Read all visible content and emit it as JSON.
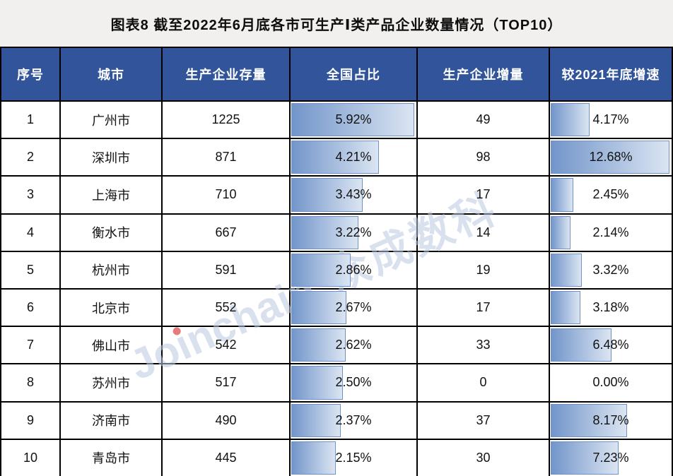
{
  "title": "图表8 截至2022年6月底各市可生产Ⅰ类产品企业数量情况（TOP10）",
  "colors": {
    "header_bg": "#31549A",
    "title_band_bg": "#f1f0ee",
    "cell_border": "#000000",
    "databar_gradient_left": "#7295CA",
    "databar_gradient_right": "#DBE5F2",
    "databar_border": "#6E92C8",
    "header_text": "#ffffff",
    "body_text": "#111111"
  },
  "watermark": {
    "latin_prefix": "Jo",
    "dotless_i": "ı",
    "latin_suffix": "nchain",
    "reg": "®",
    "cjk": "众成数科"
  },
  "table": {
    "columns": [
      "序号",
      "城市",
      "生产企业存量",
      "全国占比",
      "生产企业增量",
      "较2021年底增速"
    ],
    "rows": [
      {
        "rank": "1",
        "city": "广州市",
        "stock": "1225",
        "share": "5.92%",
        "share_w": 100,
        "inc": "49",
        "growth": "4.17%",
        "growth_w": 32.9
      },
      {
        "rank": "2",
        "city": "深圳市",
        "stock": "871",
        "share": "4.21%",
        "share_w": 71.1,
        "inc": "98",
        "growth": "12.68%",
        "growth_w": 100
      },
      {
        "rank": "3",
        "city": "上海市",
        "stock": "710",
        "share": "3.43%",
        "share_w": 57.9,
        "inc": "17",
        "growth": "2.45%",
        "growth_w": 19.3
      },
      {
        "rank": "4",
        "city": "衡水市",
        "stock": "667",
        "share": "3.22%",
        "share_w": 54.4,
        "inc": "14",
        "growth": "2.14%",
        "growth_w": 16.9
      },
      {
        "rank": "5",
        "city": "杭州市",
        "stock": "591",
        "share": "2.86%",
        "share_w": 48.3,
        "inc": "19",
        "growth": "3.32%",
        "growth_w": 26.2
      },
      {
        "rank": "6",
        "city": "北京市",
        "stock": "552",
        "share": "2.67%",
        "share_w": 45.1,
        "inc": "17",
        "growth": "3.18%",
        "growth_w": 25.1
      },
      {
        "rank": "7",
        "city": "佛山市",
        "stock": "542",
        "share": "2.62%",
        "share_w": 44.3,
        "inc": "33",
        "growth": "6.48%",
        "growth_w": 51.1
      },
      {
        "rank": "8",
        "city": "苏州市",
        "stock": "517",
        "share": "2.50%",
        "share_w": 42.2,
        "inc": "0",
        "growth": "0.00%",
        "growth_w": 0
      },
      {
        "rank": "9",
        "city": "济南市",
        "stock": "490",
        "share": "2.37%",
        "share_w": 40.0,
        "inc": "37",
        "growth": "8.17%",
        "growth_w": 64.4
      },
      {
        "rank": "10",
        "city": "青岛市",
        "stock": "445",
        "share": "2.15%",
        "share_w": 36.3,
        "inc": "30",
        "growth": "7.23%",
        "growth_w": 57.0
      }
    ]
  },
  "chart_data": {
    "type": "table",
    "title": "图表8 截至2022年6月底各市可生产Ⅰ类产品企业数量情况（TOP10）",
    "columns": [
      "序号",
      "城市",
      "生产企业存量",
      "全国占比",
      "生产企业增量",
      "较2021年底增速"
    ],
    "rows": [
      [
        1,
        "广州市",
        1225,
        "5.92%",
        49,
        "4.17%"
      ],
      [
        2,
        "深圳市",
        871,
        "4.21%",
        98,
        "12.68%"
      ],
      [
        3,
        "上海市",
        710,
        "3.43%",
        17,
        "2.45%"
      ],
      [
        4,
        "衡水市",
        667,
        "3.22%",
        14,
        "2.14%"
      ],
      [
        5,
        "杭州市",
        591,
        "2.86%",
        19,
        "3.32%"
      ],
      [
        6,
        "北京市",
        552,
        "2.67%",
        17,
        "3.18%"
      ],
      [
        7,
        "佛山市",
        542,
        "2.62%",
        33,
        "6.48%"
      ],
      [
        8,
        "苏州市",
        517,
        "2.50%",
        0,
        "0.00%"
      ],
      [
        9,
        "济南市",
        490,
        "2.37%",
        37,
        "8.17%"
      ],
      [
        10,
        "青岛市",
        445,
        "2.15%",
        30,
        "7.23%"
      ]
    ],
    "databars": [
      {
        "column": "全国占比",
        "type": "bar",
        "values_pct": [
          5.92,
          4.21,
          3.43,
          3.22,
          2.86,
          2.67,
          2.62,
          2.5,
          2.37,
          2.15
        ],
        "axis_max": 5.92
      },
      {
        "column": "较2021年底增速",
        "type": "bar",
        "values_pct": [
          4.17,
          12.68,
          2.45,
          2.14,
          3.32,
          3.18,
          6.48,
          0.0,
          8.17,
          7.23
        ],
        "axis_max": 12.68
      }
    ]
  }
}
